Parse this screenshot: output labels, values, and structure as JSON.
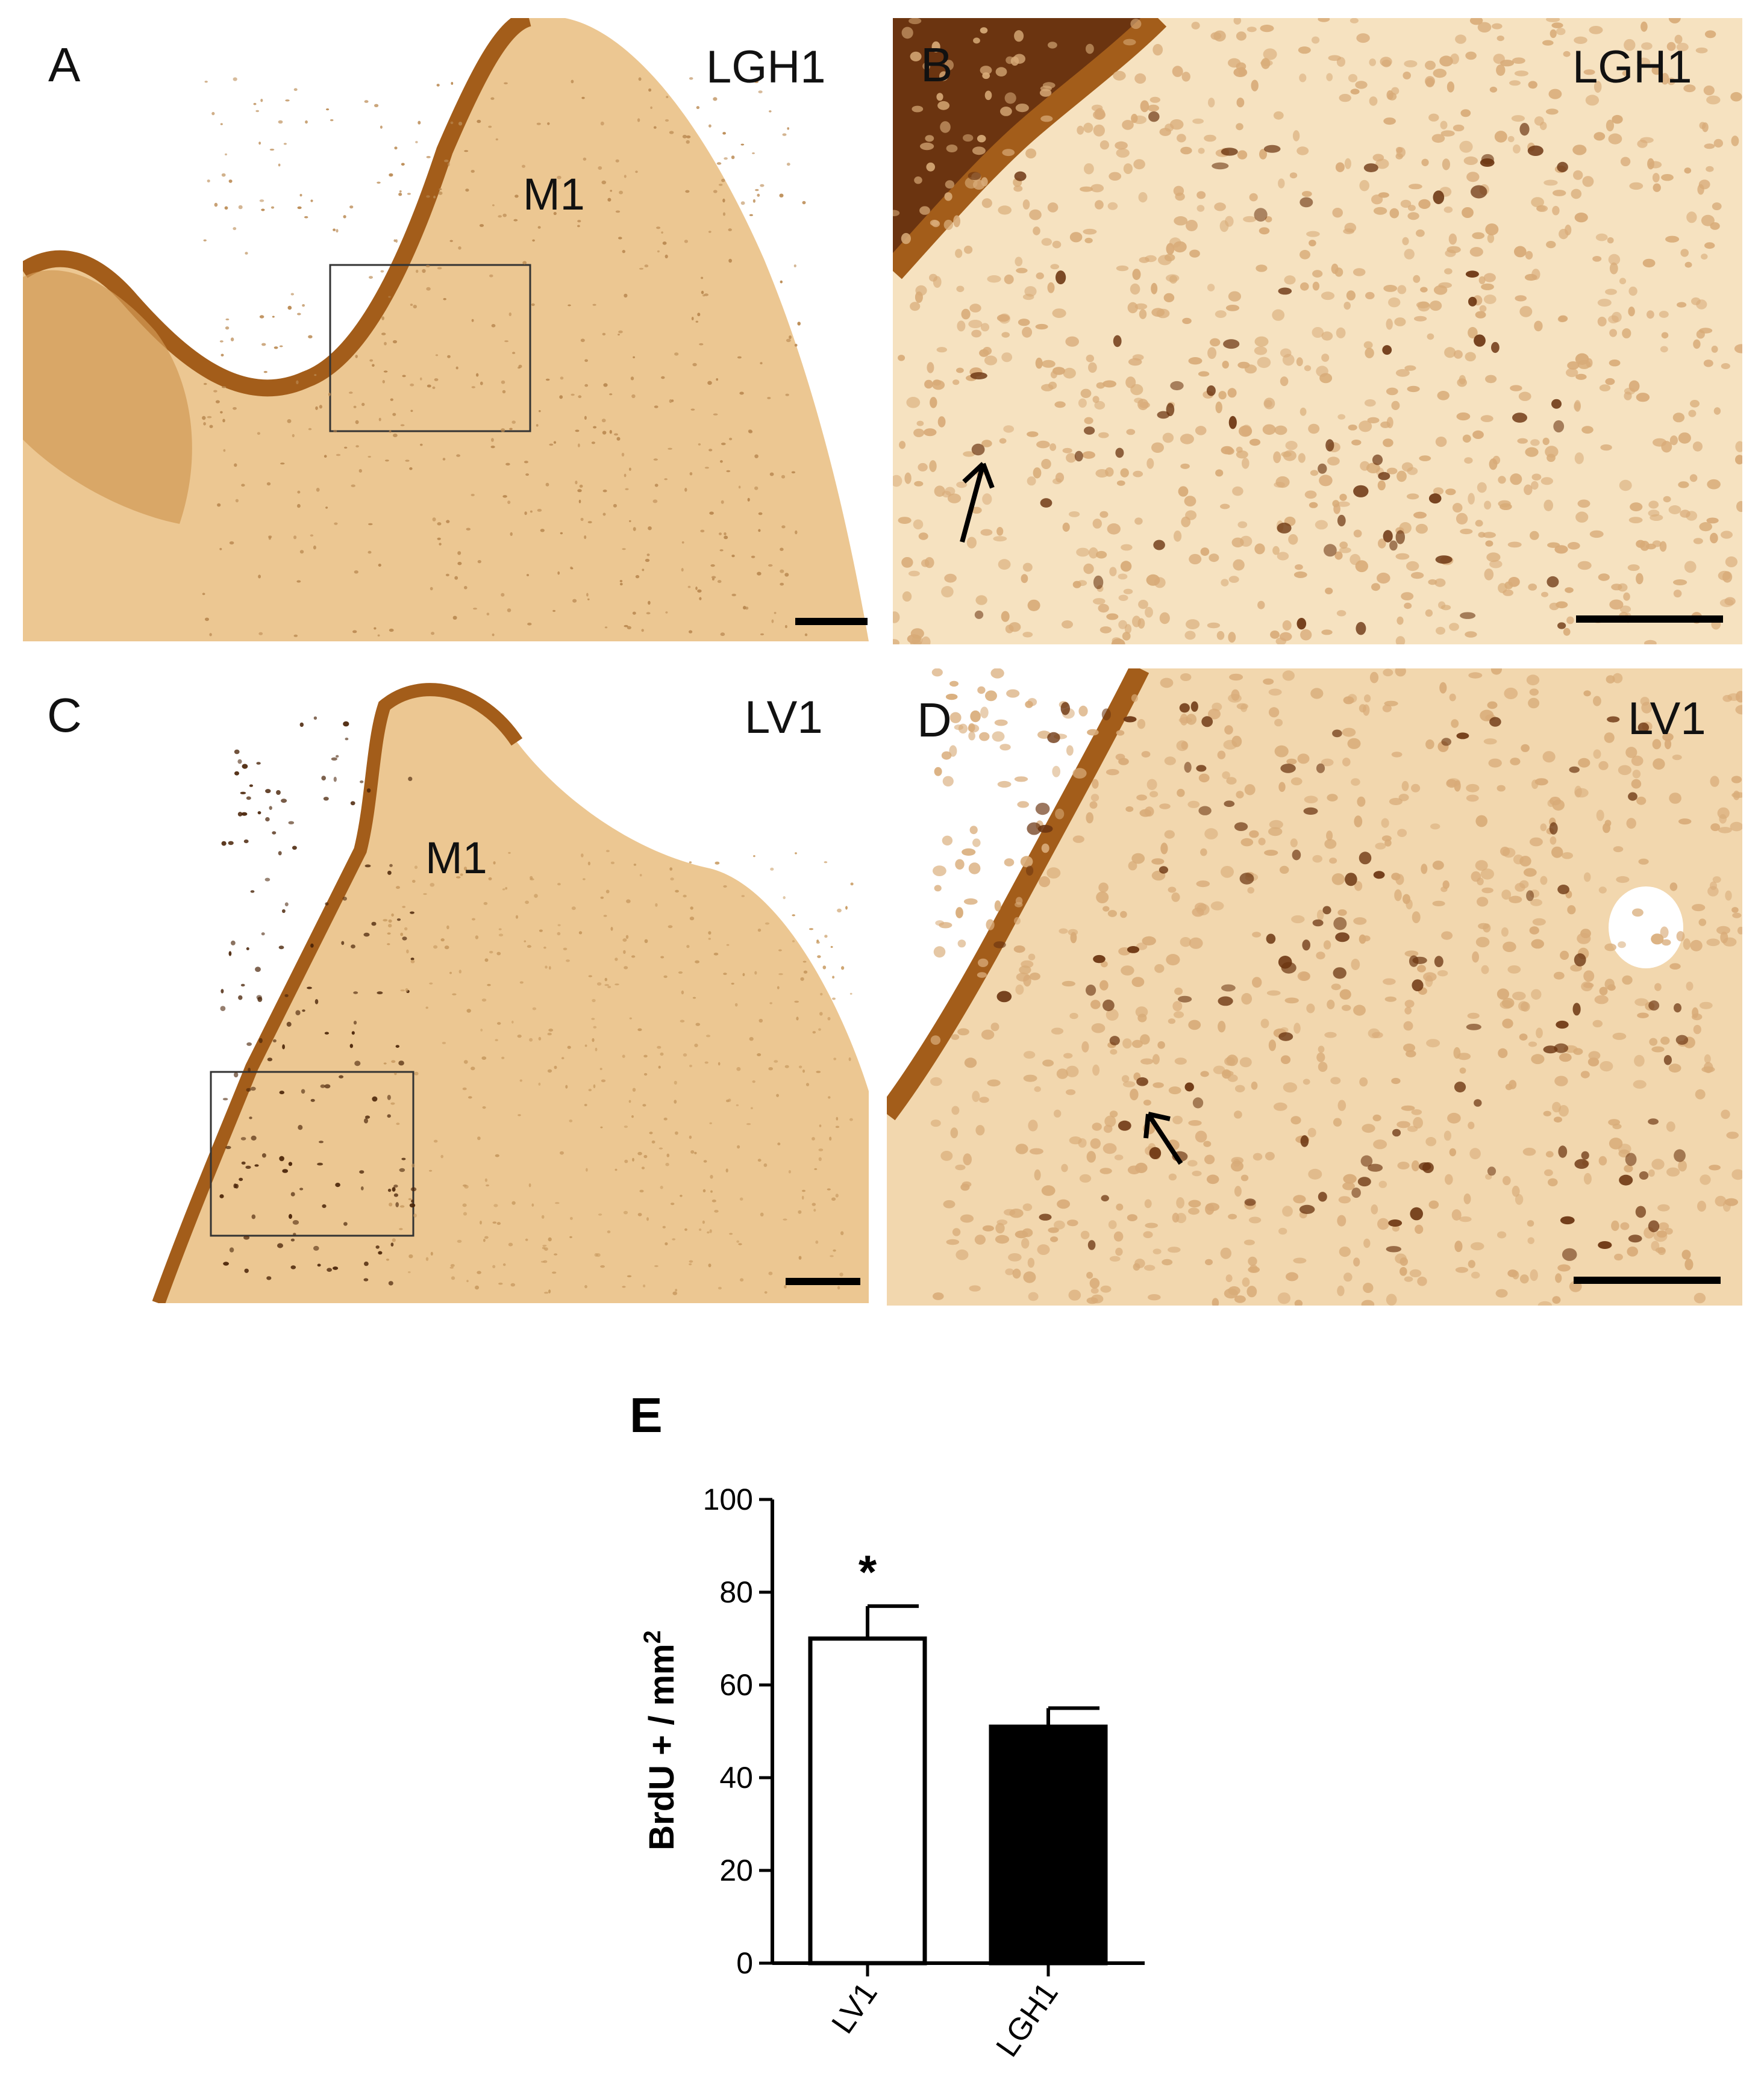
{
  "panels": {
    "a": {
      "letter": "A",
      "group": "LGH1",
      "region": "M1"
    },
    "b": {
      "letter": "B",
      "group": "LGH1"
    },
    "c": {
      "letter": "C",
      "group": "LV1",
      "region": "M1"
    },
    "d": {
      "letter": "D",
      "group": "LV1"
    }
  },
  "colors": {
    "tissue": "#ecc792",
    "tissue_edge": "#a35d1a",
    "cell_dark": "#6b3410",
    "cell_light": "#d8ab78"
  },
  "chart_data": {
    "type": "bar",
    "panel_letter": "E",
    "categories": [
      "LV1",
      "LGH1"
    ],
    "values": [
      70,
      51
    ],
    "errors": [
      7,
      4
    ],
    "bar_fill": [
      "#ffffff",
      "#000000"
    ],
    "ylabel": "BrdU + / mm",
    "ylabel_superscript": "2",
    "ylim": [
      0,
      100
    ],
    "yticks": [
      "0",
      "20",
      "40",
      "60",
      "80",
      "100"
    ],
    "significance_marker": "*"
  }
}
